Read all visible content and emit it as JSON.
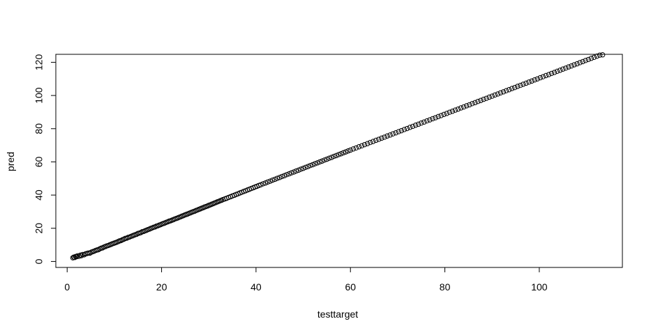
{
  "chart_data": {
    "type": "scatter",
    "title": "",
    "xlabel": "testtarget",
    "ylabel": "pred",
    "xlim": [
      -2.4,
      117.6
    ],
    "ylim": [
      -3.6,
      124.8
    ],
    "xticks": [
      0,
      20,
      40,
      60,
      80,
      100
    ],
    "yticks": [
      0,
      20,
      40,
      60,
      80,
      100,
      120
    ],
    "xtick_labels": [
      "0",
      "20",
      "40",
      "60",
      "80",
      "100"
    ],
    "ytick_labels": [
      "0",
      "20",
      "40",
      "60",
      "80",
      "100",
      "120"
    ],
    "grid": false,
    "legend": "none",
    "marker": "open-circle",
    "marker_color": "#000000",
    "points": [
      [
        1.2,
        2.2
      ],
      [
        1.4,
        2.6
      ],
      [
        1.6,
        2.4
      ],
      [
        1.8,
        3.0
      ],
      [
        2.0,
        2.9
      ],
      [
        2.2,
        3.4
      ],
      [
        2.5,
        3.1
      ],
      [
        2.8,
        3.8
      ],
      [
        3.0,
        3.5
      ],
      [
        3.3,
        4.2
      ],
      [
        3.6,
        4.0
      ],
      [
        3.9,
        4.6
      ],
      [
        4.2,
        4.8
      ],
      [
        4.5,
        5.1
      ],
      [
        4.8,
        5.0
      ],
      [
        5.1,
        5.6
      ],
      [
        5.4,
        5.9
      ],
      [
        5.7,
        6.2
      ],
      [
        6.0,
        6.6
      ],
      [
        6.3,
        6.9
      ],
      [
        6.6,
        7.1
      ],
      [
        6.9,
        7.6
      ],
      [
        7.2,
        8.0
      ],
      [
        7.5,
        8.2
      ],
      [
        7.8,
        8.7
      ],
      [
        8.1,
        9.0
      ],
      [
        8.4,
        9.4
      ],
      [
        8.7,
        9.6
      ],
      [
        9.0,
        10.0
      ],
      [
        9.3,
        10.3
      ],
      [
        9.6,
        10.7
      ],
      [
        9.9,
        11.0
      ],
      [
        10.2,
        11.3
      ],
      [
        10.5,
        11.6
      ],
      [
        10.8,
        12.0
      ],
      [
        11.1,
        12.4
      ],
      [
        11.4,
        12.6
      ],
      [
        11.7,
        13.1
      ],
      [
        12.0,
        13.4
      ],
      [
        12.3,
        13.9
      ],
      [
        12.6,
        14.0
      ],
      [
        12.9,
        14.5
      ],
      [
        13.2,
        14.7
      ],
      [
        13.5,
        15.1
      ],
      [
        13.8,
        15.4
      ],
      [
        14.1,
        15.8
      ],
      [
        14.4,
        16.1
      ],
      [
        14.7,
        16.4
      ],
      [
        15.0,
        16.9
      ],
      [
        15.3,
        17.1
      ],
      [
        15.6,
        17.4
      ],
      [
        15.9,
        17.9
      ],
      [
        16.2,
        18.1
      ],
      [
        16.5,
        18.5
      ],
      [
        16.8,
        18.8
      ],
      [
        17.1,
        19.2
      ],
      [
        17.4,
        19.5
      ],
      [
        17.7,
        19.9
      ],
      [
        18.0,
        20.2
      ],
      [
        18.3,
        20.6
      ],
      [
        18.6,
        20.8
      ],
      [
        18.9,
        21.3
      ],
      [
        19.2,
        21.5
      ],
      [
        19.5,
        21.9
      ],
      [
        19.8,
        22.2
      ],
      [
        20.1,
        22.6
      ],
      [
        20.4,
        22.9
      ],
      [
        20.7,
        23.2
      ],
      [
        21.0,
        23.6
      ],
      [
        21.3,
        23.9
      ],
      [
        21.6,
        24.3
      ],
      [
        21.9,
        24.5
      ],
      [
        22.2,
        24.9
      ],
      [
        22.5,
        25.2
      ],
      [
        22.8,
        25.6
      ],
      [
        23.1,
        25.9
      ],
      [
        23.4,
        26.2
      ],
      [
        23.7,
        26.6
      ],
      [
        24.0,
        26.9
      ],
      [
        24.3,
        27.3
      ],
      [
        24.6,
        27.6
      ],
      [
        24.9,
        28.0
      ],
      [
        25.2,
        28.3
      ],
      [
        25.5,
        28.6
      ],
      [
        25.8,
        29.0
      ],
      [
        26.1,
        29.3
      ],
      [
        26.4,
        29.7
      ],
      [
        26.7,
        30.0
      ],
      [
        27.0,
        30.3
      ],
      [
        27.3,
        30.7
      ],
      [
        27.6,
        31.0
      ],
      [
        27.9,
        31.4
      ],
      [
        28.2,
        31.7
      ],
      [
        28.5,
        32.1
      ],
      [
        28.8,
        32.4
      ],
      [
        29.1,
        32.8
      ],
      [
        29.4,
        33.1
      ],
      [
        29.7,
        33.4
      ],
      [
        30.0,
        33.8
      ],
      [
        30.3,
        34.1
      ],
      [
        30.6,
        34.5
      ],
      [
        30.9,
        34.8
      ],
      [
        31.2,
        35.2
      ],
      [
        31.5,
        35.5
      ],
      [
        31.8,
        35.9
      ],
      [
        32.1,
        36.2
      ],
      [
        32.4,
        36.6
      ],
      [
        32.7,
        36.9
      ],
      [
        33.0,
        37.3
      ],
      [
        33.4,
        37.7
      ],
      [
        33.8,
        38.1
      ],
      [
        34.2,
        38.6
      ],
      [
        34.6,
        39.0
      ],
      [
        35.0,
        39.5
      ],
      [
        35.4,
        39.9
      ],
      [
        35.8,
        40.4
      ],
      [
        36.2,
        40.8
      ],
      [
        36.6,
        41.3
      ],
      [
        37.0,
        41.7
      ],
      [
        37.4,
        42.2
      ],
      [
        37.8,
        42.6
      ],
      [
        38.2,
        43.1
      ],
      [
        38.6,
        43.5
      ],
      [
        39.0,
        44.0
      ],
      [
        39.4,
        44.4
      ],
      [
        39.8,
        44.9
      ],
      [
        40.2,
        45.3
      ],
      [
        40.6,
        45.8
      ],
      [
        41.0,
        46.2
      ],
      [
        41.5,
        46.8
      ],
      [
        42.0,
        47.3
      ],
      [
        42.5,
        47.9
      ],
      [
        43.0,
        48.4
      ],
      [
        43.5,
        49.0
      ],
      [
        44.0,
        49.5
      ],
      [
        44.5,
        50.1
      ],
      [
        45.0,
        50.6
      ],
      [
        45.5,
        51.2
      ],
      [
        46.0,
        51.7
      ],
      [
        46.5,
        52.3
      ],
      [
        47.0,
        52.8
      ],
      [
        47.5,
        53.4
      ],
      [
        48.0,
        53.9
      ],
      [
        48.5,
        54.5
      ],
      [
        49.0,
        55.0
      ],
      [
        49.5,
        55.6
      ],
      [
        50.0,
        56.1
      ],
      [
        50.5,
        56.7
      ],
      [
        51.0,
        57.2
      ],
      [
        51.5,
        57.8
      ],
      [
        52.0,
        58.3
      ],
      [
        52.5,
        58.9
      ],
      [
        53.0,
        59.4
      ],
      [
        53.5,
        60.0
      ],
      [
        54.0,
        60.5
      ],
      [
        54.5,
        61.1
      ],
      [
        55.0,
        61.6
      ],
      [
        55.5,
        62.2
      ],
      [
        56.0,
        62.7
      ],
      [
        56.5,
        63.3
      ],
      [
        57.0,
        63.8
      ],
      [
        57.5,
        64.4
      ],
      [
        58.0,
        64.9
      ],
      [
        58.5,
        65.5
      ],
      [
        59.0,
        66.0
      ],
      [
        59.5,
        66.6
      ],
      [
        60.0,
        67.1
      ],
      [
        60.6,
        67.8
      ],
      [
        61.2,
        68.4
      ],
      [
        61.8,
        69.1
      ],
      [
        62.4,
        69.7
      ],
      [
        63.0,
        70.4
      ],
      [
        63.6,
        71.0
      ],
      [
        64.2,
        71.7
      ],
      [
        64.8,
        72.3
      ],
      [
        65.4,
        73.0
      ],
      [
        66.0,
        73.6
      ],
      [
        66.6,
        74.3
      ],
      [
        67.2,
        74.9
      ],
      [
        67.8,
        75.6
      ],
      [
        68.4,
        76.2
      ],
      [
        69.0,
        76.9
      ],
      [
        69.6,
        77.5
      ],
      [
        70.2,
        78.2
      ],
      [
        70.8,
        78.8
      ],
      [
        71.4,
        79.5
      ],
      [
        72.0,
        80.1
      ],
      [
        72.6,
        80.8
      ],
      [
        73.2,
        81.4
      ],
      [
        73.8,
        82.1
      ],
      [
        74.4,
        82.7
      ],
      [
        75.0,
        83.4
      ],
      [
        75.6,
        84.0
      ],
      [
        76.2,
        84.7
      ],
      [
        76.8,
        85.3
      ],
      [
        77.4,
        86.0
      ],
      [
        78.0,
        86.6
      ],
      [
        78.6,
        87.3
      ],
      [
        79.2,
        87.9
      ],
      [
        79.8,
        88.6
      ],
      [
        80.4,
        89.2
      ],
      [
        81.0,
        89.9
      ],
      [
        81.6,
        90.5
      ],
      [
        82.2,
        91.2
      ],
      [
        82.8,
        91.8
      ],
      [
        83.4,
        92.5
      ],
      [
        84.0,
        93.1
      ],
      [
        84.6,
        93.8
      ],
      [
        85.2,
        94.4
      ],
      [
        85.8,
        95.1
      ],
      [
        86.4,
        95.7
      ],
      [
        87.0,
        96.4
      ],
      [
        87.6,
        97.0
      ],
      [
        88.2,
        97.7
      ],
      [
        88.8,
        98.3
      ],
      [
        89.4,
        99.0
      ],
      [
        90.0,
        99.6
      ],
      [
        90.6,
        100.3
      ],
      [
        91.2,
        100.9
      ],
      [
        91.8,
        101.6
      ],
      [
        92.4,
        102.2
      ],
      [
        93.0,
        102.9
      ],
      [
        93.6,
        103.5
      ],
      [
        94.2,
        104.2
      ],
      [
        94.8,
        104.8
      ],
      [
        95.4,
        105.5
      ],
      [
        96.0,
        106.1
      ],
      [
        96.6,
        106.8
      ],
      [
        97.2,
        107.4
      ],
      [
        97.8,
        108.1
      ],
      [
        98.4,
        108.7
      ],
      [
        99.0,
        109.4
      ],
      [
        99.6,
        110.0
      ],
      [
        100.2,
        110.7
      ],
      [
        100.8,
        111.3
      ],
      [
        101.4,
        112.0
      ],
      [
        102.0,
        112.6
      ],
      [
        102.6,
        113.3
      ],
      [
        103.2,
        113.9
      ],
      [
        103.8,
        114.6
      ],
      [
        104.4,
        115.2
      ],
      [
        105.0,
        115.9
      ],
      [
        105.6,
        116.5
      ],
      [
        106.2,
        117.2
      ],
      [
        106.8,
        117.8
      ],
      [
        107.4,
        118.5
      ],
      [
        108.0,
        119.1
      ],
      [
        108.6,
        119.8
      ],
      [
        109.2,
        120.4
      ],
      [
        109.8,
        121.1
      ],
      [
        110.4,
        121.7
      ],
      [
        111.0,
        122.4
      ],
      [
        111.6,
        123.0
      ],
      [
        112.2,
        123.7
      ],
      [
        112.8,
        124.3
      ],
      [
        113.4,
        124.5
      ]
    ]
  }
}
